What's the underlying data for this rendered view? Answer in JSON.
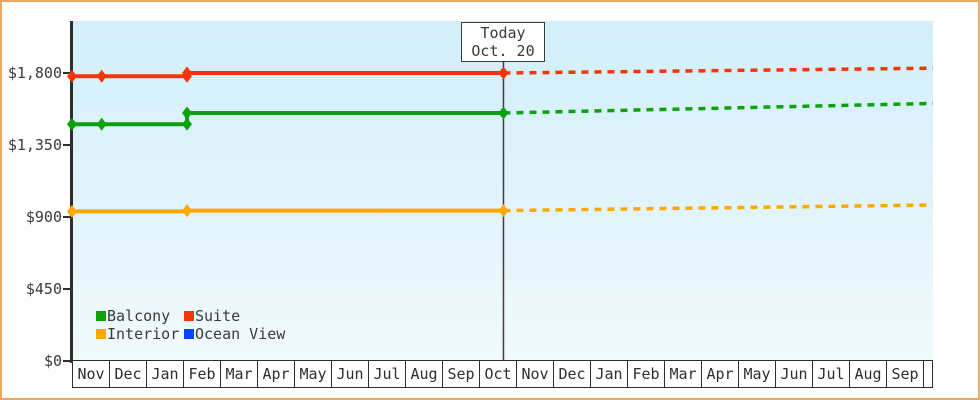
{
  "chart_data": {
    "type": "line",
    "description": "Cruise cabin price history and forecast",
    "x_months": [
      "Nov",
      "Dec",
      "Jan",
      "Feb",
      "Mar",
      "Apr",
      "May",
      "Jun",
      "Jul",
      "Aug",
      "Sep",
      "Oct",
      "Nov",
      "Dec",
      "Jan",
      "Feb",
      "Mar",
      "Apr",
      "May",
      "Jun",
      "Jul",
      "Aug",
      "Sep"
    ],
    "y_ticks": [
      {
        "label": "$1,800",
        "value": 1800
      },
      {
        "label": "$1,350",
        "value": 1350
      },
      {
        "label": "$900",
        "value": 900
      },
      {
        "label": "$450",
        "value": 450
      },
      {
        "label": "$0",
        "value": 0
      }
    ],
    "ylim": [
      0,
      2125
    ],
    "today": {
      "line1": "Today",
      "line2": "Oct. 20",
      "m": 11.63
    },
    "series": [
      {
        "name": "Balcony",
        "color": "#0da10d",
        "history": [
          [
            0,
            1480
          ],
          [
            0.8,
            1480
          ],
          [
            3.1,
            1480
          ],
          [
            3.1,
            1550
          ],
          [
            11.63,
            1550
          ]
        ],
        "markers": [
          [
            0,
            1480
          ],
          [
            0.8,
            1480
          ],
          [
            3.1,
            1480
          ],
          [
            3.1,
            1550
          ],
          [
            11.63,
            1550
          ]
        ],
        "forecast": [
          [
            11.63,
            1550
          ],
          [
            23.2,
            1610
          ]
        ]
      },
      {
        "name": "Suite",
        "color": "#f2360b",
        "history": [
          [
            0,
            1780
          ],
          [
            0.8,
            1780
          ],
          [
            3.1,
            1780
          ],
          [
            3.1,
            1800
          ],
          [
            11.63,
            1800
          ]
        ],
        "markers": [
          [
            0,
            1780
          ],
          [
            0.8,
            1780
          ],
          [
            3.1,
            1780
          ],
          [
            3.1,
            1800
          ],
          [
            11.63,
            1800
          ]
        ],
        "forecast": [
          [
            11.63,
            1800
          ],
          [
            23.2,
            1830
          ]
        ]
      },
      {
        "name": "Interior",
        "color": "#ffa805",
        "history": [
          [
            0,
            935
          ],
          [
            3.1,
            935
          ],
          [
            3.1,
            940
          ],
          [
            11.63,
            940
          ]
        ],
        "markers": [
          [
            0,
            935
          ],
          [
            3.1,
            940
          ],
          [
            11.63,
            940
          ]
        ],
        "forecast": [
          [
            11.63,
            940
          ],
          [
            23.2,
            975
          ]
        ]
      },
      {
        "name": "Ocean View",
        "color": "#0846f0",
        "history": [],
        "markers": [],
        "forecast": []
      }
    ],
    "legend": [
      "Balcony",
      "Suite",
      "Interior",
      "Ocean View"
    ],
    "legend_position": "bottom-left-inside",
    "grid": false
  },
  "colors": {
    "page_border": "#eda95f",
    "axis": "#2e2e2e",
    "today_line": "#3e3e3e",
    "plot_top": "#d2effa",
    "plot_bottom": "#f1fafd",
    "text": "#3a3a3a"
  }
}
